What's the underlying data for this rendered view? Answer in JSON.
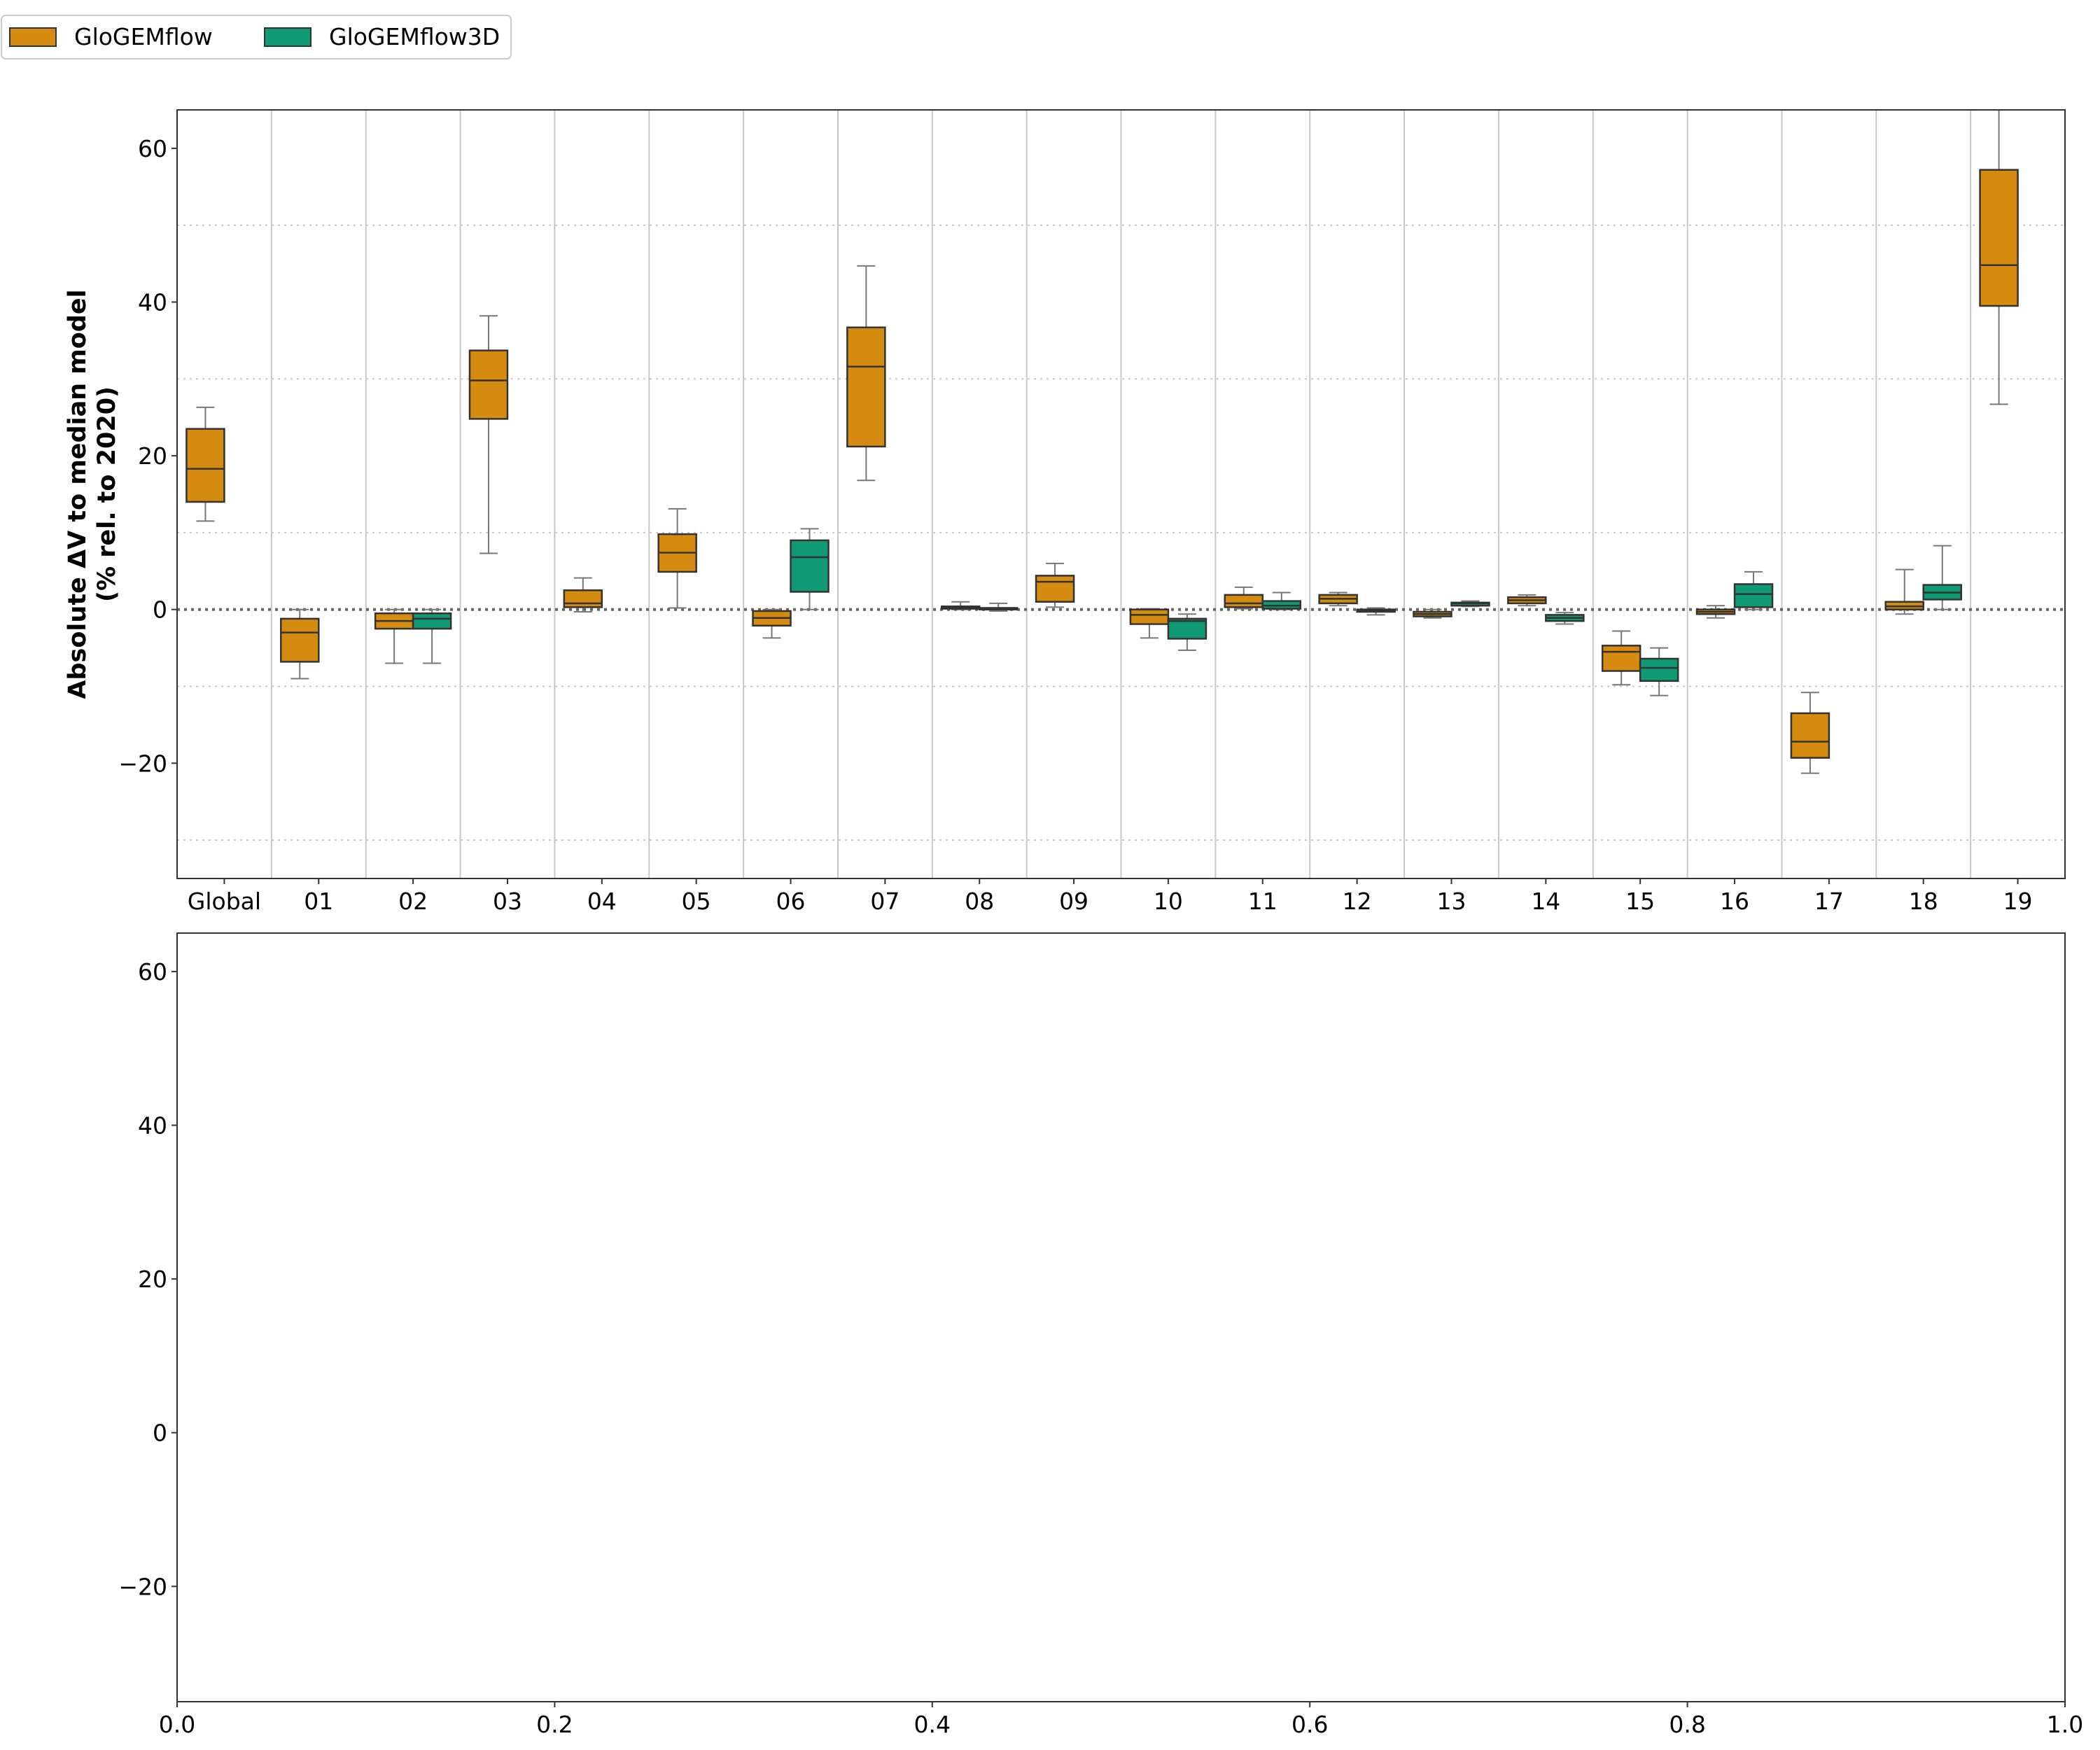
{
  "legend": {
    "placement": "top-left, above plots",
    "entries": [
      {
        "name": "GloGEMflow",
        "color": "#D58B10"
      },
      {
        "name": "GloGEMflow3D",
        "color": "#0F9A74"
      }
    ]
  },
  "colors": {
    "GloGEMflow": "#D58B10",
    "GloGEMflow3D": "#0F9A74",
    "whisker": "#777777",
    "box_edge": "#333333",
    "grid": "#c8c8c8"
  },
  "chart_data": [
    {
      "type": "box",
      "title": "",
      "ylabel_line1": "Absolute ΔV to median model",
      "ylabel_line2": "(% rel. to 2020)",
      "xlabel": "",
      "ylim": [
        -35,
        65
      ],
      "yticks": [
        -20,
        0,
        20,
        40,
        60
      ],
      "ytick_labels": [
        "−20",
        "0",
        "20",
        "40",
        "60"
      ],
      "minor_grid_y": [
        -30,
        -10,
        10,
        30,
        50
      ],
      "zero_line": true,
      "vertical_grid": true,
      "categories": [
        "Global",
        "01",
        "02",
        "03",
        "04",
        "05",
        "06",
        "07",
        "08",
        "09",
        "10",
        "11",
        "12",
        "13",
        "14",
        "15",
        "16",
        "17",
        "18",
        "19"
      ],
      "series": [
        {
          "name": "GloGEMflow",
          "boxes": [
            {
              "category": "Global",
              "whislo": 11.5,
              "q1": 14.0,
              "med": 18.3,
              "q3": 23.5,
              "whishi": 26.3
            },
            {
              "category": "01",
              "whislo": -9.0,
              "q1": -6.8,
              "med": -3.0,
              "q3": -1.2,
              "whishi": 0.0
            },
            {
              "category": "02",
              "whislo": -7.0,
              "q1": -2.5,
              "med": -1.5,
              "q3": -0.5,
              "whishi": 0.0
            },
            {
              "category": "03",
              "whislo": 7.3,
              "q1": 24.8,
              "med": 29.8,
              "q3": 33.7,
              "whishi": 38.2
            },
            {
              "category": "04",
              "whislo": -0.3,
              "q1": 0.3,
              "med": 0.8,
              "q3": 2.5,
              "whishi": 4.1
            },
            {
              "category": "05",
              "whislo": 0.2,
              "q1": 4.9,
              "med": 7.4,
              "q3": 9.8,
              "whishi": 13.1
            },
            {
              "category": "06",
              "whislo": -3.7,
              "q1": -2.1,
              "med": -1.1,
              "q3": -0.2,
              "whishi": 0.0
            },
            {
              "category": "07",
              "whislo": 16.8,
              "q1": 21.2,
              "med": 31.6,
              "q3": 36.7,
              "whishi": 44.7
            },
            {
              "category": "08",
              "whislo": 0.0,
              "q1": 0.1,
              "med": 0.3,
              "q3": 0.4,
              "whishi": 1.0
            },
            {
              "category": "09",
              "whislo": 0.3,
              "q1": 1.0,
              "med": 3.6,
              "q3": 4.4,
              "whishi": 6.0
            },
            {
              "category": "10",
              "whislo": -3.7,
              "q1": -1.9,
              "med": -0.7,
              "q3": 0.0,
              "whishi": 0.1
            },
            {
              "category": "11",
              "whislo": 0.1,
              "q1": 0.3,
              "med": 0.8,
              "q3": 1.9,
              "whishi": 2.9
            },
            {
              "category": "12",
              "whislo": 0.5,
              "q1": 0.8,
              "med": 1.4,
              "q3": 1.9,
              "whishi": 2.2
            },
            {
              "category": "13",
              "whislo": -1.1,
              "q1": -0.9,
              "med": -0.6,
              "q3": -0.3,
              "whishi": 0.0
            },
            {
              "category": "14",
              "whislo": 0.5,
              "q1": 0.8,
              "med": 1.2,
              "q3": 1.6,
              "whishi": 1.9
            },
            {
              "category": "15",
              "whislo": -9.8,
              "q1": -8.0,
              "med": -5.5,
              "q3": -4.7,
              "whishi": -2.8
            },
            {
              "category": "16",
              "whislo": -1.1,
              "q1": -0.6,
              "med": -0.3,
              "q3": 0.0,
              "whishi": 0.5
            },
            {
              "category": "17",
              "whislo": -21.3,
              "q1": -19.3,
              "med": -17.2,
              "q3": -13.5,
              "whishi": -10.8
            },
            {
              "category": "18",
              "whislo": -0.6,
              "q1": 0.0,
              "med": 0.4,
              "q3": 1.0,
              "whishi": 5.2
            },
            {
              "category": "19",
              "whislo": 26.7,
              "q1": 39.5,
              "med": 44.8,
              "q3": 57.2,
              "whishi": 65.0
            }
          ]
        },
        {
          "name": "GloGEMflow3D",
          "boxes": [
            {
              "category": "02",
              "whislo": -7.0,
              "q1": -2.5,
              "med": -1.2,
              "q3": -0.5,
              "whishi": 0.0
            },
            {
              "category": "06",
              "whislo": 0.0,
              "q1": 2.3,
              "med": 6.8,
              "q3": 9.0,
              "whishi": 10.5
            },
            {
              "category": "08",
              "whislo": -0.2,
              "q1": 0.0,
              "med": 0.1,
              "q3": 0.2,
              "whishi": 0.8
            },
            {
              "category": "10",
              "whislo": -5.3,
              "q1": -3.8,
              "med": -1.5,
              "q3": -1.2,
              "whishi": -0.6
            },
            {
              "category": "11",
              "whislo": 0.0,
              "q1": 0.1,
              "med": 0.5,
              "q3": 1.1,
              "whishi": 2.2
            },
            {
              "category": "12",
              "whislo": -0.7,
              "q1": -0.3,
              "med": -0.1,
              "q3": 0.0,
              "whishi": 0.2
            },
            {
              "category": "13",
              "whislo": 0.4,
              "q1": 0.5,
              "med": 0.8,
              "q3": 0.9,
              "whishi": 1.1
            },
            {
              "category": "14",
              "whislo": -1.9,
              "q1": -1.5,
              "med": -1.1,
              "q3": -0.7,
              "whishi": -0.4
            },
            {
              "category": "15",
              "whislo": -11.2,
              "q1": -9.3,
              "med": -7.6,
              "q3": -6.4,
              "whishi": -5.0
            },
            {
              "category": "16",
              "whislo": 0.0,
              "q1": 0.3,
              "med": 2.0,
              "q3": 3.3,
              "whishi": 4.9
            },
            {
              "category": "18",
              "whislo": 0.0,
              "q1": 1.3,
              "med": 2.2,
              "q3": 3.2,
              "whishi": 8.3
            }
          ]
        }
      ]
    },
    {
      "type": "empty",
      "title": "",
      "xlabel": "",
      "ylabel": "",
      "ylim": [
        -35,
        65
      ],
      "yticks": [
        -20,
        0,
        20,
        40,
        60
      ],
      "ytick_labels": [
        "−20",
        "0",
        "20",
        "40",
        "60"
      ],
      "xlim": [
        0,
        1
      ],
      "xticks": [
        0,
        0.2,
        0.4,
        0.6,
        0.8,
        1.0
      ],
      "xtick_labels": [
        "0.0",
        "0.2",
        "0.4",
        "0.6",
        "0.8",
        "1.0"
      ]
    }
  ]
}
